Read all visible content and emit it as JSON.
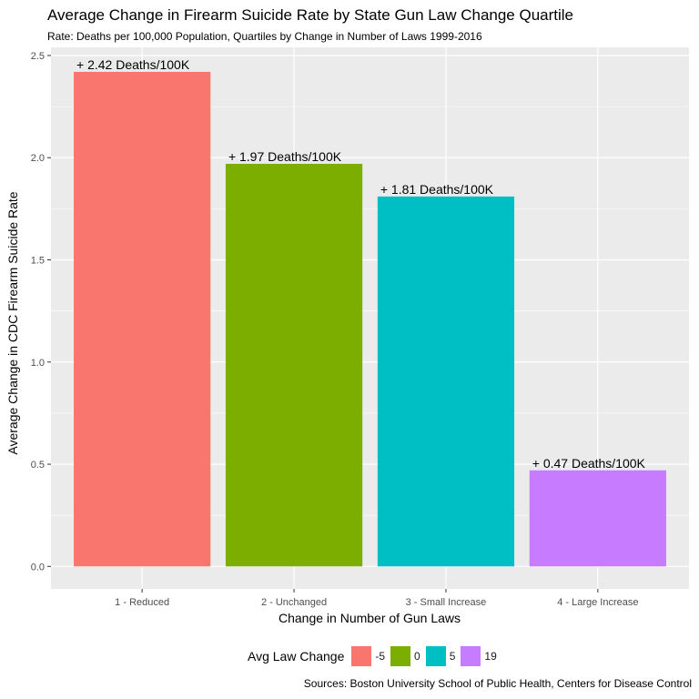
{
  "chart_data": {
    "type": "bar",
    "title": "Average Change in Firearm Suicide Rate by State Gun Law Change Quartile",
    "subtitle": "Rate: Deaths per 100,000 Population, Quartiles by Change in Number of Laws 1999-2016",
    "xlabel": "Change in Number of Gun Laws",
    "ylabel": "Average Change in CDC Firearm Suicide Rate",
    "categories": [
      "1 - Reduced",
      "2 - Unchanged",
      "3 - Small Increase",
      "4 - Large Increase"
    ],
    "values": [
      2.42,
      1.97,
      1.81,
      0.47
    ],
    "data_labels": [
      "+ 2.42  Deaths/100K",
      "+ 1.97  Deaths/100K",
      "+ 1.81  Deaths/100K",
      "+ 0.47  Deaths/100K"
    ],
    "colors": [
      "#F8766D",
      "#7CAE00",
      "#00BFC4",
      "#C77CFF"
    ],
    "ylim": [
      -0.11,
      2.54
    ],
    "yticks": [
      0.0,
      0.5,
      1.0,
      1.5,
      2.0,
      2.5
    ],
    "ytick_labels": [
      "0.0",
      "0.5",
      "1.0",
      "1.5",
      "2.0",
      "2.5"
    ],
    "grid": true,
    "legend": {
      "title": "Avg Law Change",
      "position": "bottom",
      "entries": [
        "-5",
        "0",
        "5",
        "19"
      ]
    },
    "caption": "Sources: Boston University School of Public Health, Centers for Disease Control"
  }
}
